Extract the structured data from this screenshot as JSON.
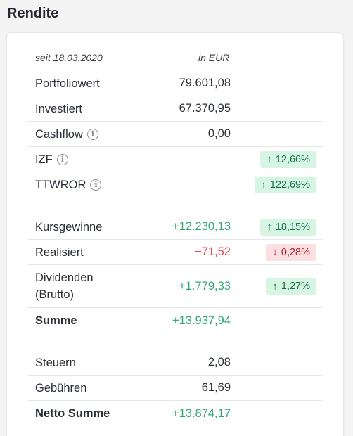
{
  "heading": "Rendite",
  "header": {
    "since": "seit 18.03.2020",
    "currency": "in EUR"
  },
  "rows": {
    "portfoliowert": {
      "label": "Portfoliowert",
      "value": "79.601,08"
    },
    "investiert": {
      "label": "Investiert",
      "value": "67.370,95"
    },
    "cashflow": {
      "label": "Cashflow",
      "value": "0,00"
    },
    "izf": {
      "label": "IZF",
      "badge_arrow": "↑",
      "badge_value": "12,66%"
    },
    "ttwror": {
      "label": "TTWROR",
      "badge_arrow": "↑",
      "badge_value": "122,69%"
    },
    "kursgewinne": {
      "label": "Kursgewinne",
      "value": "+12.230,13",
      "badge_arrow": "↑",
      "badge_value": "18,15%"
    },
    "realisiert": {
      "label": "Realisiert",
      "value": "−71,52",
      "badge_arrow": "↓",
      "badge_value": "0,28%"
    },
    "dividenden": {
      "label_line1": "Dividenden",
      "label_line2": "(Brutto)",
      "value": "+1.779,33",
      "badge_arrow": "↑",
      "badge_value": "1,27%"
    },
    "summe": {
      "label": "Summe",
      "value": "+13.937,94"
    },
    "steuern": {
      "label": "Steuern",
      "value": "2,08"
    },
    "gebuehren": {
      "label": "Gebühren",
      "value": "61,69"
    },
    "netto_summe": {
      "label": "Netto Summe",
      "value": "+13.874,17"
    }
  },
  "icons": {
    "info": "info-circle-icon"
  },
  "colors": {
    "positive": "#2fa872",
    "negative": "#e0454e",
    "badge_up_bg": "#d7f5e3",
    "badge_down_bg": "#fbdfe1"
  }
}
